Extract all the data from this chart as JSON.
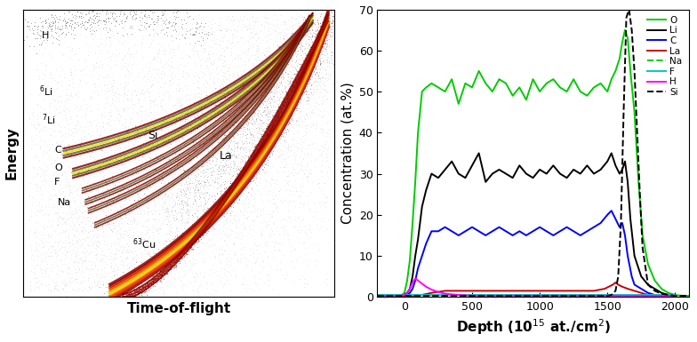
{
  "left_panel": {
    "xlabel": "Time-of-flight",
    "ylabel": "Energy",
    "bg_color": "#ffffff"
  },
  "right_panel": {
    "xlabel": "Depth (10$^{15}$ at./cm$^2$)",
    "ylabel": "Concentration (at.%)",
    "xlim": [
      -200,
      2100
    ],
    "ylim": [
      0,
      70
    ],
    "xticks": [
      0,
      500,
      1000,
      1500,
      2000
    ],
    "yticks": [
      0,
      10,
      20,
      30,
      40,
      50,
      60,
      70
    ],
    "colors": {
      "O": "#00cc00",
      "Li": "#000000",
      "C": "#0000ff",
      "La": "#cc0000",
      "Na": "#00cc00",
      "F": "#00cccc",
      "H": "#ff00ff",
      "Si": "#000000"
    },
    "linestyles": {
      "O": "-",
      "Li": "-",
      "C": "-",
      "La": "-",
      "Na": "--",
      "F": "-",
      "H": "-",
      "Si": "--"
    },
    "O": {
      "x": [
        -200,
        -150,
        -100,
        -60,
        -30,
        0,
        20,
        40,
        60,
        80,
        100,
        130,
        160,
        200,
        250,
        300,
        350,
        400,
        450,
        500,
        550,
        600,
        650,
        700,
        750,
        800,
        850,
        900,
        950,
        1000,
        1050,
        1100,
        1150,
        1200,
        1250,
        1300,
        1350,
        1400,
        1450,
        1500,
        1530,
        1560,
        1590,
        1610,
        1630,
        1650,
        1670,
        1700,
        1730,
        1760,
        1800,
        1850,
        1900,
        1950,
        2000,
        2050,
        2100
      ],
      "y": [
        0.3,
        0.3,
        0.3,
        0.3,
        0.3,
        1,
        4,
        9,
        18,
        28,
        40,
        50,
        51,
        52,
        51,
        50,
        53,
        47,
        52,
        51,
        55,
        52,
        50,
        53,
        52,
        49,
        51,
        48,
        53,
        50,
        52,
        53,
        51,
        50,
        53,
        50,
        49,
        51,
        52,
        50,
        53,
        55,
        58,
        62,
        65,
        63,
        55,
        45,
        28,
        15,
        8,
        4,
        2,
        1,
        0.5,
        0.3,
        0.3
      ]
    },
    "Li": {
      "x": [
        -200,
        -150,
        -100,
        -50,
        0,
        20,
        40,
        60,
        80,
        100,
        130,
        160,
        200,
        250,
        300,
        350,
        400,
        450,
        500,
        550,
        600,
        650,
        700,
        750,
        800,
        850,
        900,
        950,
        1000,
        1050,
        1100,
        1150,
        1200,
        1250,
        1300,
        1350,
        1400,
        1450,
        1500,
        1530,
        1560,
        1590,
        1610,
        1630,
        1650,
        1670,
        1700,
        1750,
        1800,
        1850,
        1900,
        1950,
        2000
      ],
      "y": [
        0.3,
        0.3,
        0.3,
        0.3,
        0.5,
        1,
        2,
        5,
        10,
        14,
        22,
        26,
        30,
        29,
        31,
        33,
        30,
        29,
        32,
        35,
        28,
        30,
        31,
        30,
        29,
        32,
        30,
        29,
        31,
        30,
        32,
        30,
        29,
        31,
        30,
        32,
        30,
        31,
        33,
        35,
        32,
        30,
        31,
        33,
        28,
        19,
        10,
        5,
        3,
        2,
        1,
        0.5,
        0.3
      ]
    },
    "C": {
      "x": [
        -200,
        -150,
        -100,
        -50,
        0,
        20,
        40,
        60,
        80,
        100,
        130,
        160,
        200,
        250,
        300,
        350,
        400,
        450,
        500,
        550,
        600,
        650,
        700,
        750,
        800,
        850,
        900,
        950,
        1000,
        1050,
        1100,
        1150,
        1200,
        1250,
        1300,
        1350,
        1400,
        1450,
        1500,
        1530,
        1560,
        1590,
        1610,
        1630,
        1650,
        1680,
        1700,
        1750,
        1800,
        1850,
        1900
      ],
      "y": [
        0.3,
        0.3,
        0.3,
        0.3,
        0.3,
        0.5,
        1,
        2,
        4,
        7,
        10,
        13,
        16,
        16,
        17,
        16,
        15,
        16,
        17,
        16,
        15,
        16,
        17,
        16,
        15,
        16,
        15,
        16,
        17,
        16,
        15,
        16,
        17,
        16,
        15,
        16,
        17,
        18,
        20,
        21,
        19,
        17,
        18,
        15,
        10,
        5,
        3,
        2,
        1,
        0.5,
        0.3
      ]
    },
    "La": {
      "x": [
        -200,
        0,
        100,
        200,
        300,
        400,
        500,
        600,
        700,
        800,
        900,
        1000,
        1100,
        1200,
        1300,
        1400,
        1480,
        1510,
        1540,
        1560,
        1580,
        1610,
        1650,
        1700,
        1750,
        1800,
        1900,
        2000
      ],
      "y": [
        0.3,
        0.3,
        0.3,
        1.0,
        1.5,
        1.5,
        1.5,
        1.5,
        1.5,
        1.5,
        1.5,
        1.5,
        1.5,
        1.5,
        1.5,
        1.5,
        2.0,
        2.5,
        3.0,
        3.5,
        3.0,
        2.5,
        2.0,
        1.5,
        1.0,
        0.5,
        0.3,
        0.3
      ]
    },
    "Na": {
      "x": [
        -200,
        0,
        200,
        400,
        600,
        800,
        1000,
        1200,
        1400,
        1500,
        1600,
        1700,
        1800,
        1900,
        2000
      ],
      "y": [
        0.3,
        0.3,
        0.3,
        0.3,
        0.3,
        0.3,
        0.3,
        0.3,
        0.3,
        0.3,
        0.3,
        0.3,
        0.3,
        0.3,
        0.3
      ]
    },
    "F": {
      "x": [
        -200,
        0,
        200,
        400,
        600,
        800,
        1000,
        1200,
        1400,
        1500,
        1600,
        1700,
        1800,
        1900,
        2000
      ],
      "y": [
        0.5,
        0.5,
        0.5,
        0.5,
        0.5,
        0.5,
        0.5,
        0.5,
        0.5,
        0.5,
        0.5,
        0.5,
        0.5,
        0.5,
        0.5
      ]
    },
    "H": {
      "x": [
        -200,
        -150,
        -100,
        -60,
        -30,
        0,
        20,
        40,
        60,
        80,
        100,
        120,
        140,
        160,
        200,
        250,
        300,
        400,
        500,
        700,
        900,
        1100,
        1300,
        1500,
        1700,
        1900,
        2000
      ],
      "y": [
        0.3,
        0.3,
        0.3,
        0.3,
        0.3,
        0.5,
        1.0,
        2.0,
        3.5,
        4.5,
        4.0,
        3.5,
        3.0,
        2.5,
        1.8,
        1.2,
        0.8,
        0.5,
        0.3,
        0.3,
        0.3,
        0.3,
        0.3,
        0.3,
        0.3,
        0.3,
        0.3
      ]
    },
    "Si": {
      "x": [
        -200,
        0,
        200,
        400,
        600,
        800,
        1000,
        1200,
        1400,
        1500,
        1530,
        1560,
        1580,
        1600,
        1620,
        1640,
        1660,
        1680,
        1700,
        1720,
        1740,
        1760,
        1800,
        1850,
        1900,
        1950,
        2000,
        2050,
        2100
      ],
      "y": [
        0.3,
        0.3,
        0.3,
        0.3,
        0.3,
        0.3,
        0.3,
        0.3,
        0.3,
        0.3,
        0.5,
        1.5,
        5.0,
        18.0,
        45.0,
        68.0,
        70.0,
        65.0,
        55.0,
        40.0,
        25.0,
        12.0,
        3.0,
        1.5,
        0.8,
        0.5,
        0.3,
        0.3,
        0.3
      ]
    },
    "xlabel_fontsize": 11,
    "ylabel_fontsize": 11,
    "tick_fontsize": 9
  }
}
